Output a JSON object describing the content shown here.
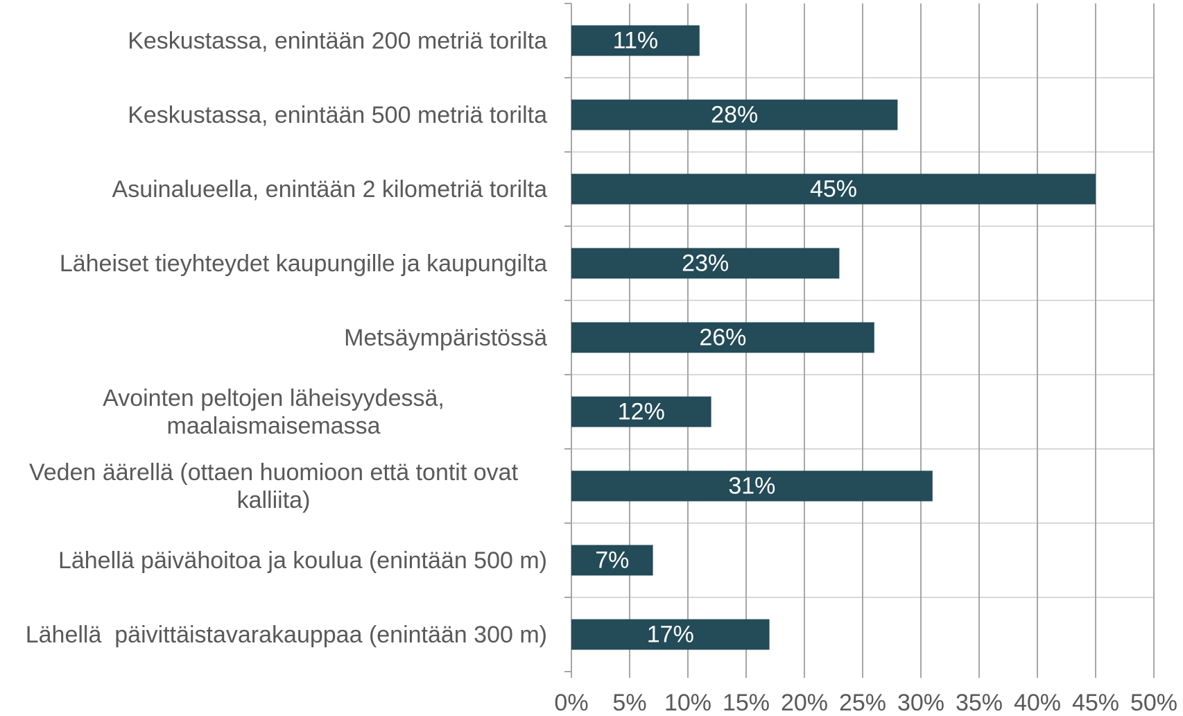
{
  "chart_data": {
    "type": "bar",
    "orientation": "horizontal",
    "categories": [
      "Keskustassa, enintään 200 metriä torilta",
      "Keskustassa, enintään 500 metriä torilta",
      "Asuinalueella, enintään 2 kilometriä torilta",
      "Läheiset tieyhteydet kaupungille ja kaupungilta",
      "Metsäympäristössä",
      "Avointen peltojen läheisyydessä, maalaismaisemassa",
      "Veden äärellä (ottaen huomioon että tontit ovat kalliita)",
      "Lähellä päivähoitoa ja koulua (enintään 500 m)",
      "Lähellä  päivittäistavarakauppaa (enintään 300 m)"
    ],
    "values": [
      11,
      28,
      45,
      23,
      26,
      12,
      31,
      7,
      17
    ],
    "value_labels": [
      "11%",
      "28%",
      "45%",
      "23%",
      "26%",
      "12%",
      "31%",
      "7%",
      "17%"
    ],
    "color": "#234b58",
    "xlim": [
      0,
      50
    ],
    "xticks": [
      {
        "value": 0,
        "label": "0%"
      },
      {
        "value": 5,
        "label": "5%"
      },
      {
        "value": 10,
        "label": "10%"
      },
      {
        "value": 15,
        "label": "15%"
      },
      {
        "value": 20,
        "label": "20%"
      },
      {
        "value": 25,
        "label": "25%"
      },
      {
        "value": 30,
        "label": "30%"
      },
      {
        "value": 35,
        "label": "35%"
      },
      {
        "value": 40,
        "label": "40%"
      },
      {
        "value": 45,
        "label": "45%"
      },
      {
        "value": 50,
        "label": "50%"
      }
    ],
    "grid": true
  }
}
